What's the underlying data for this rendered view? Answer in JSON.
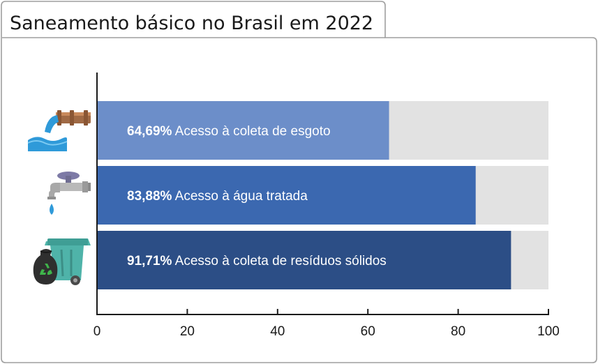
{
  "chart_data": {
    "type": "bar",
    "orientation": "horizontal",
    "title": "Saneamento básico no Brasil em 2022",
    "xlabel": "",
    "ylabel": "",
    "xlim": [
      0,
      100
    ],
    "xticks": [
      "0",
      "20",
      "40",
      "60",
      "80",
      "100"
    ],
    "grid": false,
    "categories": [
      "Acesso à coleta de esgoto",
      "Acesso à água tratada",
      "Acesso à coleta de resíduos sólidos"
    ],
    "values": [
      64.69,
      83.88,
      91.71
    ],
    "value_labels": [
      "64,69%",
      "83,88%",
      "91,71%"
    ],
    "colors": [
      "#6c8ec9",
      "#3b68b0",
      "#2c4e86"
    ],
    "background_bar_color": "#e2e2e2",
    "icons": [
      "sewage-pipe-icon",
      "water-faucet-icon",
      "recycling-bin-icon"
    ]
  }
}
